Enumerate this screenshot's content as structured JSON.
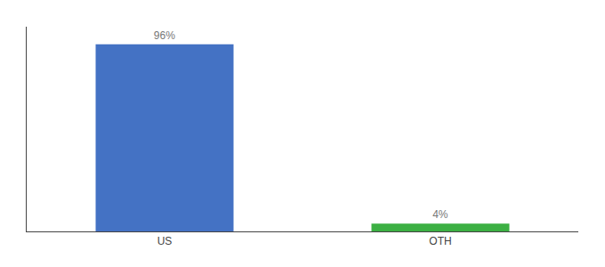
{
  "chart_data": {
    "type": "bar",
    "categories": [
      "US",
      "OTH"
    ],
    "values": [
      96,
      4
    ],
    "value_labels": [
      "96%",
      "4%"
    ],
    "data_labels": true,
    "colors": [
      "#4472C4",
      "#3CB043"
    ],
    "ylim": [
      0,
      105
    ],
    "grid": false,
    "tick_labels": "x"
  }
}
